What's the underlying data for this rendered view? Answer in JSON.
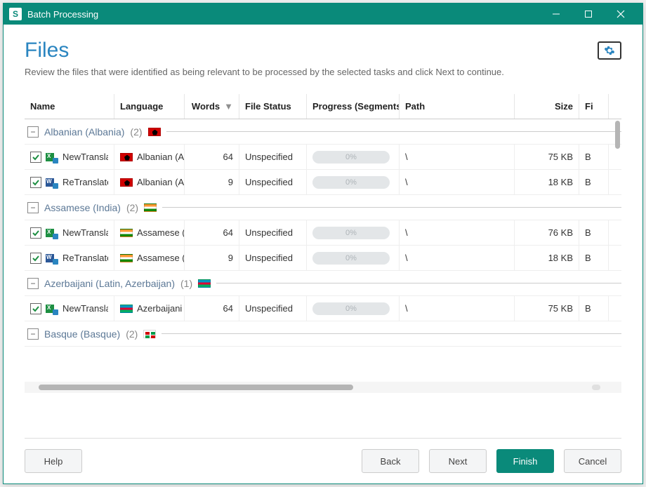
{
  "window": {
    "title": "Batch Processing",
    "app_letter": "S"
  },
  "page": {
    "title": "Files",
    "subtitle": "Review the files that were identified as being relevant to be processed by the selected tasks and click Next to continue."
  },
  "columns": {
    "name": "Name",
    "language": "Language",
    "words": "Words",
    "status": "File Status",
    "progress": "Progress (Segments)",
    "path": "Path",
    "size": "Size",
    "fi": "Fi"
  },
  "groups": [
    {
      "name": "Albanian (Albania)",
      "count": "(2)",
      "flag": "flag-al",
      "rows": [
        {
          "checked": true,
          "icon": "xls",
          "file": "NewTranslat",
          "lang": "Albanian (A",
          "flag": "flag-al",
          "words": "64",
          "status": "Unspecified",
          "progress": "0%",
          "path": "\\",
          "size": "75 KB",
          "fi": "B"
        },
        {
          "checked": true,
          "icon": "doc",
          "file": "ReTranslate_",
          "lang": "Albanian (A",
          "flag": "flag-al",
          "words": "9",
          "status": "Unspecified",
          "progress": "0%",
          "path": "\\",
          "size": "18 KB",
          "fi": "B"
        }
      ]
    },
    {
      "name": "Assamese (India)",
      "count": "(2)",
      "flag": "flag-in",
      "rows": [
        {
          "checked": true,
          "icon": "xls",
          "file": "NewTranslat",
          "lang": "Assamese (",
          "flag": "flag-in",
          "words": "64",
          "status": "Unspecified",
          "progress": "0%",
          "path": "\\",
          "size": "76 KB",
          "fi": "B"
        },
        {
          "checked": true,
          "icon": "doc",
          "file": "ReTranslate_",
          "lang": "Assamese (",
          "flag": "flag-in",
          "words": "9",
          "status": "Unspecified",
          "progress": "0%",
          "path": "\\",
          "size": "18 KB",
          "fi": "B"
        }
      ]
    },
    {
      "name": "Azerbaijani (Latin, Azerbaijan)",
      "count": "(1)",
      "flag": "flag-az",
      "rows": [
        {
          "checked": true,
          "icon": "xls",
          "file": "NewTranslat",
          "lang": "Azerbaijani",
          "flag": "flag-az",
          "words": "64",
          "status": "Unspecified",
          "progress": "0%",
          "path": "\\",
          "size": "75 KB",
          "fi": "B"
        }
      ]
    },
    {
      "name": "Basque (Basque)",
      "count": "(2)",
      "flag": "flag-eu",
      "rows": []
    }
  ],
  "buttons": {
    "help": "Help",
    "back": "Back",
    "next": "Next",
    "finish": "Finish",
    "cancel": "Cancel"
  },
  "colors": {
    "accent": "#0a8a7a",
    "title": "#2a85c0",
    "group": "#5c7896"
  }
}
